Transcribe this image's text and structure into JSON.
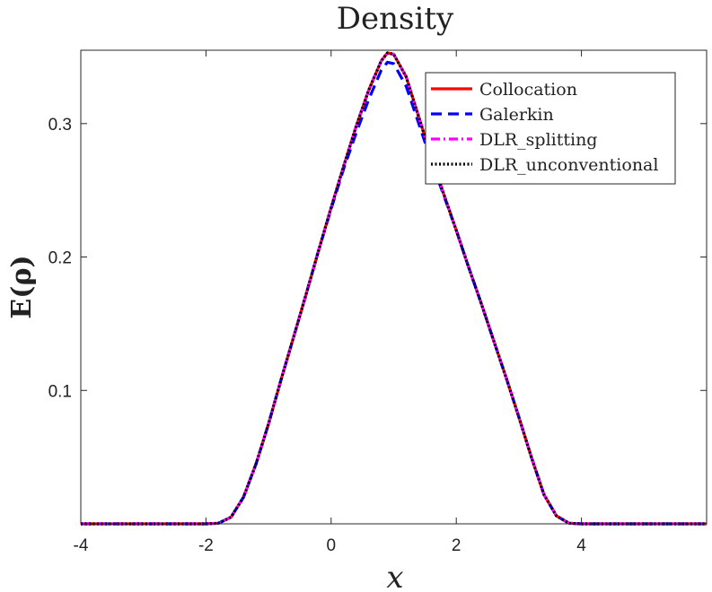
{
  "chart_data": {
    "type": "line",
    "title": "Density",
    "xlabel": "x",
    "ylabel": "E(ρ)",
    "xlim": [
      -4,
      6
    ],
    "ylim": [
      0,
      0.355
    ],
    "xticks": [
      -4,
      -2,
      0,
      2,
      4
    ],
    "xtick_labels": [
      "-4",
      "-2",
      "0",
      "2",
      "4"
    ],
    "yticks": [
      0.1,
      0.2,
      0.3
    ],
    "ytick_labels": [
      "0.1",
      "0.2",
      "0.3"
    ],
    "grid": false,
    "legend_position": "top-right",
    "series": [
      {
        "name": "Collocation",
        "color": "#ff0000",
        "style": "solid",
        "x": [
          -4,
          -2,
          -1.8,
          -1.6,
          -1.4,
          -1.2,
          -1.0,
          -0.8,
          -0.6,
          -0.4,
          -0.2,
          0.0,
          0.2,
          0.4,
          0.6,
          0.8,
          0.9,
          1.0,
          1.2,
          1.4,
          1.6,
          1.8,
          2.0,
          2.2,
          2.4,
          2.6,
          2.8,
          3.0,
          3.2,
          3.4,
          3.6,
          3.8,
          4.0,
          6.0
        ],
        "y": [
          0,
          0,
          0.0005,
          0.005,
          0.02,
          0.045,
          0.075,
          0.108,
          0.14,
          0.172,
          0.205,
          0.237,
          0.268,
          0.298,
          0.325,
          0.347,
          0.353,
          0.352,
          0.335,
          0.305,
          0.275,
          0.247,
          0.22,
          0.192,
          0.165,
          0.137,
          0.109,
          0.08,
          0.05,
          0.022,
          0.006,
          0.0005,
          0,
          0
        ]
      },
      {
        "name": "Galerkin",
        "color": "#0000ff",
        "style": "dashed",
        "x": [
          -4,
          -2,
          -1.8,
          -1.6,
          -1.4,
          -1.2,
          -1.0,
          -0.8,
          -0.6,
          -0.4,
          -0.2,
          0.0,
          0.2,
          0.4,
          0.6,
          0.8,
          0.9,
          1.0,
          1.2,
          1.4,
          1.6,
          1.8,
          2.0,
          2.2,
          2.4,
          2.6,
          2.8,
          3.0,
          3.2,
          3.4,
          3.6,
          3.8,
          4.0,
          6.0
        ],
        "y": [
          0,
          0,
          0.0005,
          0.005,
          0.02,
          0.045,
          0.075,
          0.108,
          0.14,
          0.172,
          0.205,
          0.236,
          0.266,
          0.293,
          0.318,
          0.34,
          0.346,
          0.345,
          0.328,
          0.3,
          0.272,
          0.246,
          0.22,
          0.192,
          0.165,
          0.137,
          0.109,
          0.08,
          0.05,
          0.022,
          0.006,
          0.0005,
          0,
          0
        ]
      },
      {
        "name": "DLR_splitting",
        "color": "#ff00ff",
        "style": "dashdot",
        "x": [
          -4,
          -2,
          -1.8,
          -1.6,
          -1.4,
          -1.2,
          -1.0,
          -0.8,
          -0.6,
          -0.4,
          -0.2,
          0.0,
          0.2,
          0.4,
          0.6,
          0.8,
          0.9,
          1.0,
          1.2,
          1.4,
          1.6,
          1.8,
          2.0,
          2.2,
          2.4,
          2.6,
          2.8,
          3.0,
          3.2,
          3.4,
          3.6,
          3.8,
          4.0,
          6.0
        ],
        "y": [
          0,
          0,
          0.0005,
          0.005,
          0.02,
          0.045,
          0.075,
          0.108,
          0.14,
          0.172,
          0.205,
          0.237,
          0.268,
          0.298,
          0.325,
          0.347,
          0.353,
          0.352,
          0.335,
          0.305,
          0.275,
          0.247,
          0.22,
          0.192,
          0.165,
          0.137,
          0.109,
          0.08,
          0.05,
          0.022,
          0.006,
          0.0005,
          0,
          0
        ]
      },
      {
        "name": "DLR_unconventional",
        "color": "#000000",
        "style": "dotted",
        "x": [
          -4,
          -2,
          -1.8,
          -1.6,
          -1.4,
          -1.2,
          -1.0,
          -0.8,
          -0.6,
          -0.4,
          -0.2,
          0.0,
          0.2,
          0.4,
          0.6,
          0.8,
          0.9,
          1.0,
          1.2,
          1.4,
          1.6,
          1.8,
          2.0,
          2.2,
          2.4,
          2.6,
          2.8,
          3.0,
          3.2,
          3.4,
          3.6,
          3.8,
          4.0,
          6.0
        ],
        "y": [
          0,
          0,
          0.0005,
          0.005,
          0.02,
          0.045,
          0.075,
          0.108,
          0.14,
          0.172,
          0.205,
          0.237,
          0.268,
          0.298,
          0.325,
          0.347,
          0.353,
          0.352,
          0.335,
          0.305,
          0.275,
          0.247,
          0.22,
          0.192,
          0.165,
          0.137,
          0.109,
          0.08,
          0.05,
          0.022,
          0.006,
          0.0005,
          0,
          0
        ]
      }
    ]
  }
}
